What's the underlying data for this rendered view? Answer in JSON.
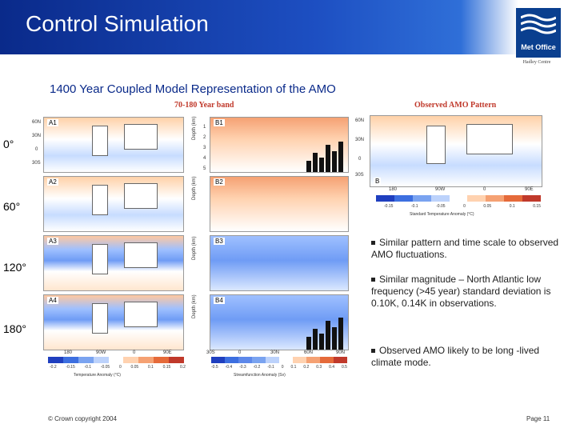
{
  "header": {
    "title": "Control Simulation"
  },
  "logo": {
    "name": "Met Office",
    "subtitle": "Hadley Centre"
  },
  "main_title": "1400 Year Coupled Model Representation of the AMO",
  "band_label": "70-180 Year band",
  "observed_label": "Observed AMO Pattern",
  "lags": [
    "0°",
    "60°",
    "120°",
    "180°"
  ],
  "map_panels": [
    "A1",
    "A2",
    "A3",
    "A4"
  ],
  "depth_panels": [
    "B1",
    "B2",
    "B3",
    "B4"
  ],
  "observed_panel": "B",
  "lat_ticks": [
    "60N",
    "30N",
    "0",
    "30S"
  ],
  "depth_axis": {
    "label": "Depth (km)",
    "ticks": [
      "1",
      "2",
      "3",
      "4",
      "5"
    ]
  },
  "map_lon_ticks": [
    "180",
    "90W",
    "0",
    "90E"
  ],
  "depth_lat_ticks": [
    "30S",
    "0",
    "30N",
    "60N",
    "90N"
  ],
  "obs_lon_ticks": [
    "180",
    "90W",
    "0",
    "90E"
  ],
  "colorbars": {
    "temperature": {
      "ticks": [
        "-0.2",
        "-0.15",
        "-0.1",
        "-0.05",
        "0",
        "0.05",
        "0.1",
        "0.15",
        "0.2"
      ],
      "label": "Temperature Anomaly (°C)"
    },
    "streamfunction": {
      "ticks": [
        "-0.5",
        "-0.4",
        "-0.3",
        "-0.2",
        "-0.1",
        "0",
        "0.1",
        "0.2",
        "0.3",
        "0.4",
        "0.5"
      ],
      "label": "Streamfunction Anomaly (Sv)"
    },
    "observed": {
      "ticks": [
        "-0.15",
        "-0.1",
        "-0.05",
        "0",
        "0.05",
        "0.1",
        "0.15"
      ],
      "label": "Standard Temperature Anomaly (°C)"
    }
  },
  "bullets": [
    "Similar pattern and time scale to observed AMO fluctuations.",
    "Similar magnitude – North Atlantic low frequency (>45 year) standard deviation is 0.10K, 0.14K in observations.",
    "Observed AMO likely to be long -lived climate mode."
  ],
  "footer": {
    "copyright": "© Crown copyright 2004",
    "page": "Page 11"
  }
}
